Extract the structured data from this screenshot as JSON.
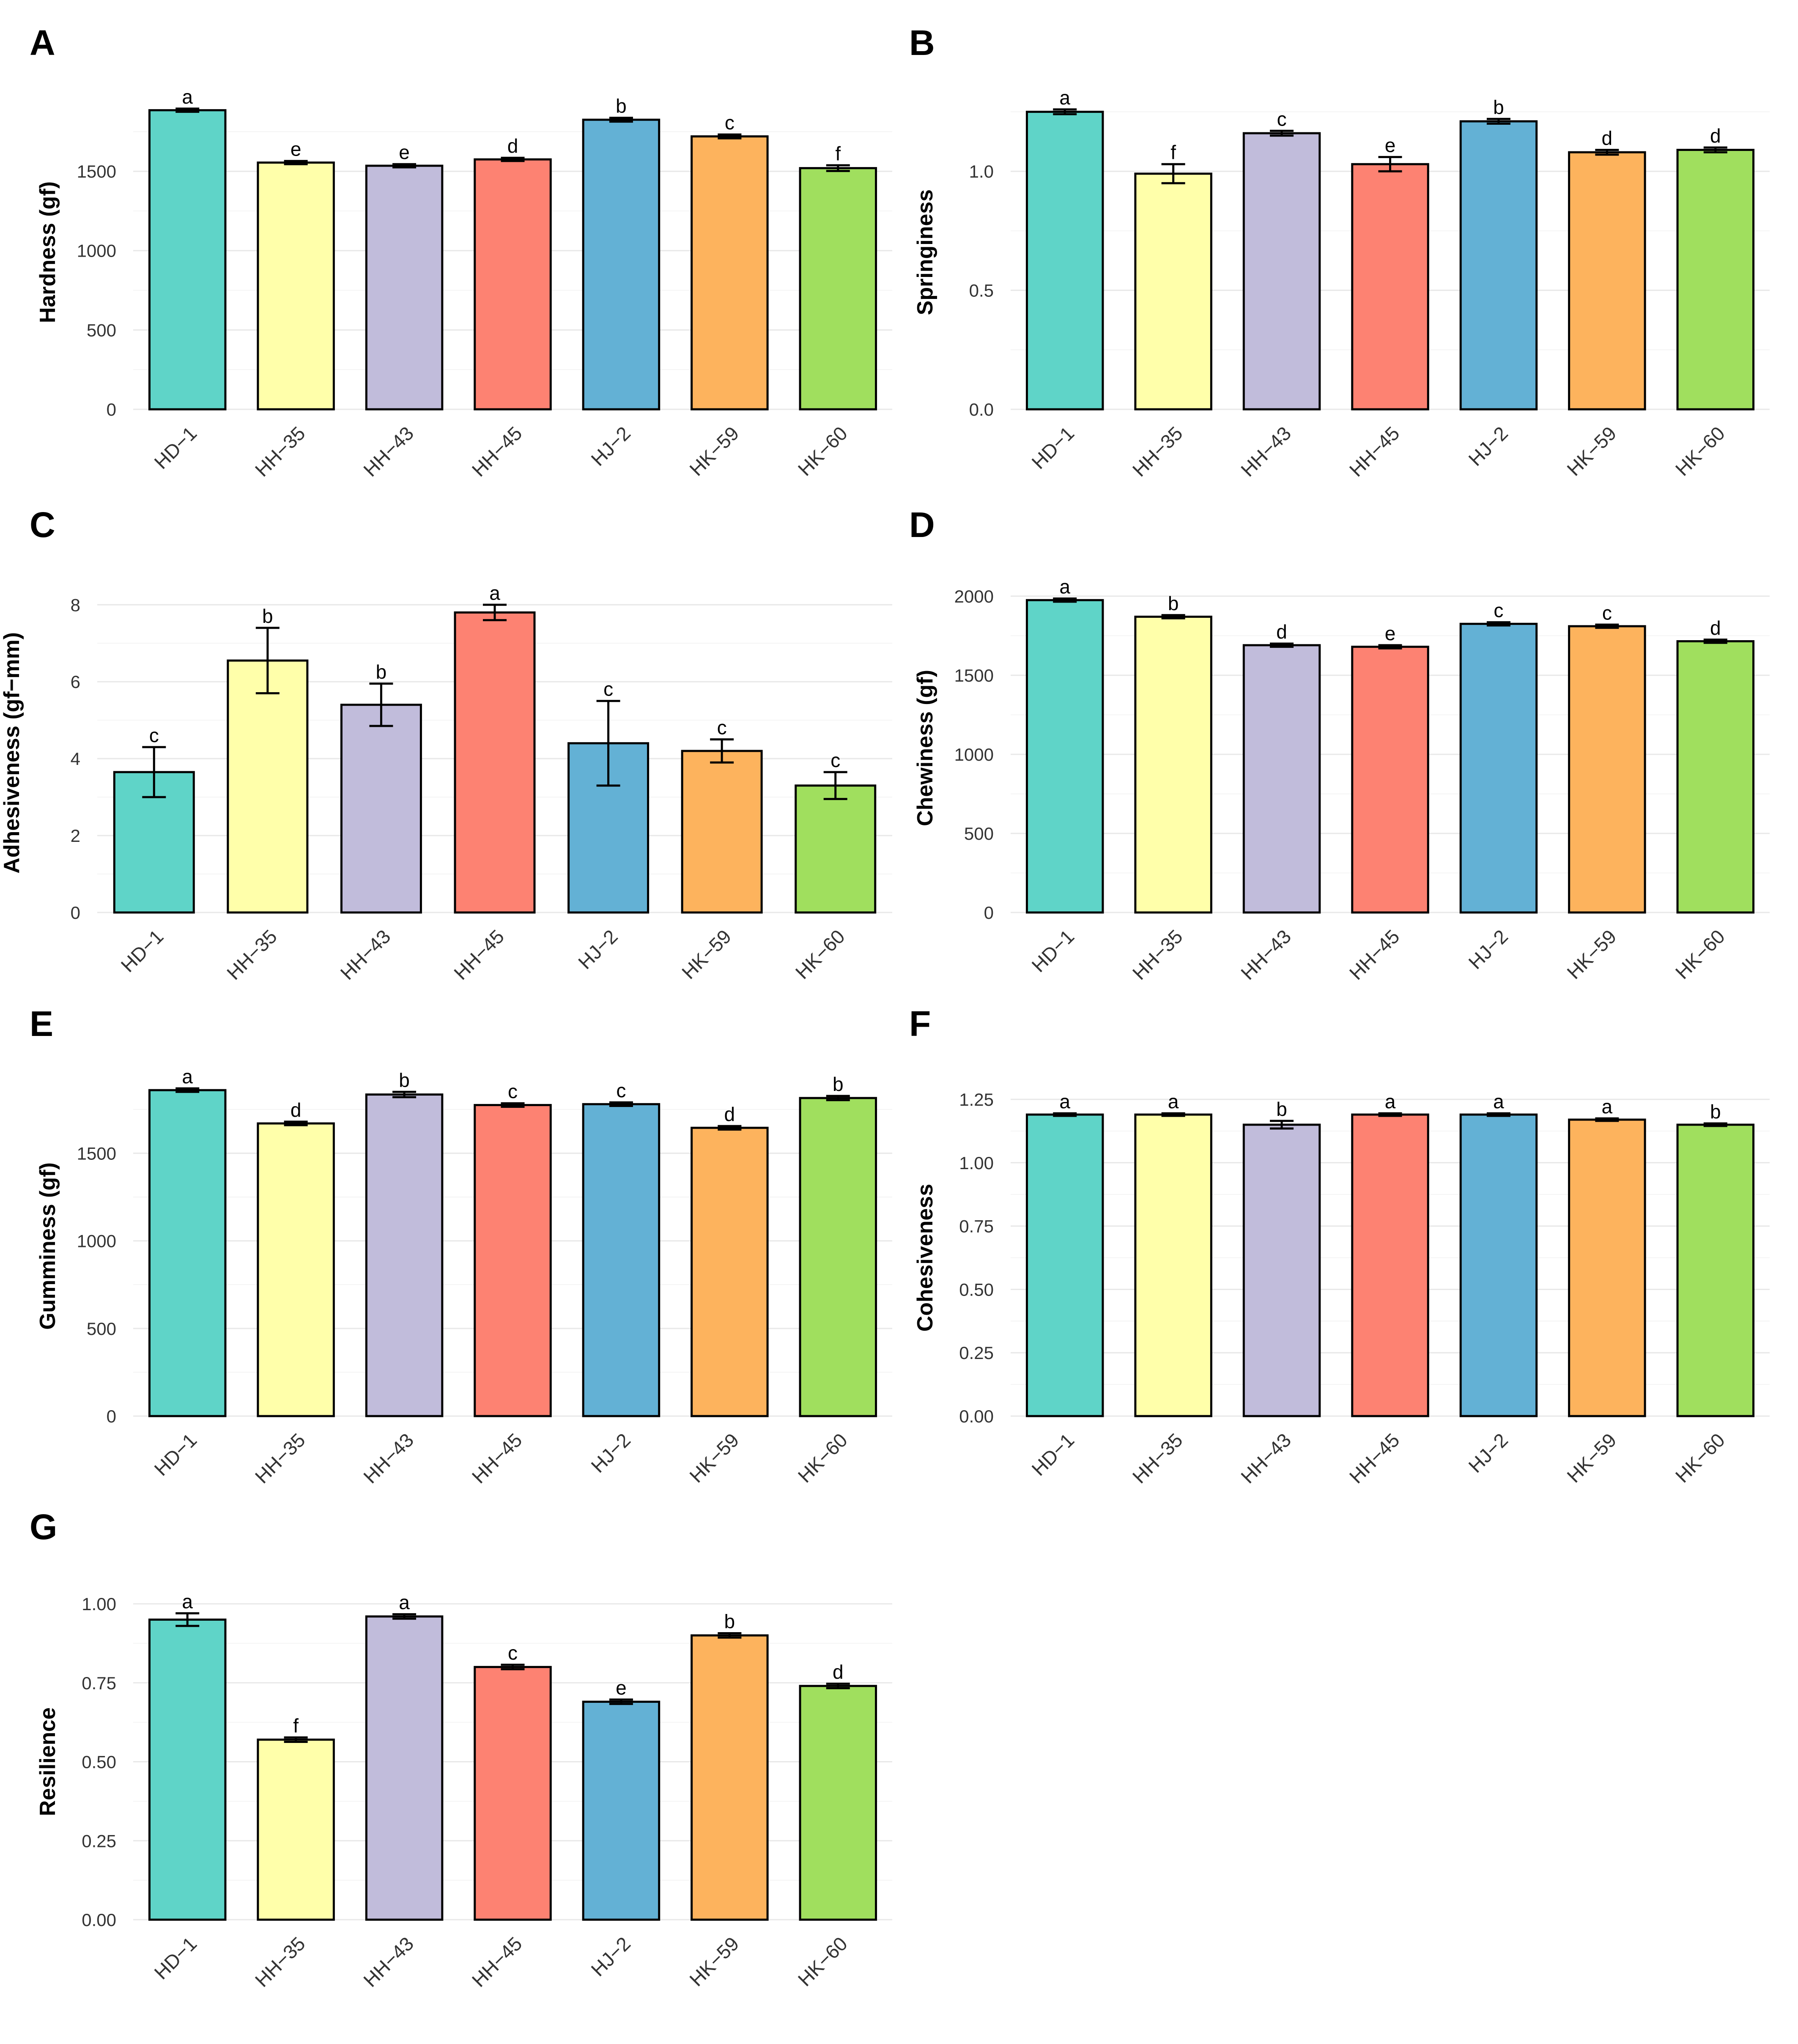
{
  "chart_data": [
    {
      "panel": "A",
      "type": "bar",
      "title": "",
      "xlabel": "",
      "ylabel": "Hardness (gf)",
      "categories": [
        "HD−1",
        "HH−35",
        "HH−43",
        "HH−45",
        "HJ−2",
        "HK−59",
        "HK−60"
      ],
      "values": [
        1885,
        1555,
        1535,
        1575,
        1825,
        1720,
        1520
      ],
      "errors": [
        10,
        10,
        10,
        10,
        12,
        12,
        18
      ],
      "letters": [
        "a",
        "e",
        "e",
        "d",
        "b",
        "c",
        "f"
      ],
      "ylim": [
        0,
        1980
      ],
      "yticks": [
        0,
        500,
        1000,
        1500
      ],
      "ytick_labels": [
        "0",
        "500",
        "1000",
        "1500"
      ]
    },
    {
      "panel": "B",
      "type": "bar",
      "title": "",
      "xlabel": "",
      "ylabel": "Springiness",
      "categories": [
        "HD−1",
        "HH−35",
        "HH−43",
        "HH−45",
        "HJ−2",
        "HK−59",
        "HK−60"
      ],
      "values": [
        1.25,
        0.99,
        1.16,
        1.03,
        1.21,
        1.08,
        1.09
      ],
      "errors": [
        0.01,
        0.04,
        0.01,
        0.03,
        0.01,
        0.01,
        0.01
      ],
      "letters": [
        "a",
        "f",
        "c",
        "e",
        "b",
        "d",
        "d"
      ],
      "ylim": [
        0,
        1.32
      ],
      "yticks": [
        0,
        0.5,
        1.0
      ],
      "ytick_labels": [
        "0.0",
        "0.5",
        "1.0"
      ]
    },
    {
      "panel": "C",
      "type": "bar",
      "title": "",
      "xlabel": "",
      "ylabel": "Adhesiveness (gf−mm)",
      "categories": [
        "HD−1",
        "HH−35",
        "HH−43",
        "HH−45",
        "HJ−2",
        "HK−59",
        "HK−60"
      ],
      "values": [
        3.65,
        6.55,
        5.4,
        7.8,
        4.4,
        4.2,
        3.3
      ],
      "errors": [
        0.65,
        0.85,
        0.55,
        0.2,
        1.1,
        0.3,
        0.35
      ],
      "letters": [
        "c",
        "b",
        "b",
        "a",
        "c",
        "c",
        "c"
      ],
      "ylim": [
        0,
        8.3
      ],
      "yticks": [
        0,
        2,
        4,
        6,
        8
      ],
      "ytick_labels": [
        "0",
        "2",
        "4",
        "6",
        "8"
      ]
    },
    {
      "panel": "D",
      "type": "bar",
      "title": "",
      "xlabel": "",
      "ylabel": "Chewiness (gf)",
      "categories": [
        "HD−1",
        "HH−35",
        "HH−43",
        "HH−45",
        "HJ−2",
        "HK−59",
        "HK−60"
      ],
      "values": [
        1975,
        1870,
        1690,
        1680,
        1825,
        1810,
        1715
      ],
      "errors": [
        10,
        10,
        10,
        10,
        10,
        10,
        10
      ],
      "letters": [
        "a",
        "b",
        "d",
        "e",
        "c",
        "c",
        "d"
      ],
      "ylim": [
        0,
        2080
      ],
      "yticks": [
        0,
        500,
        1000,
        1500,
        2000
      ],
      "ytick_labels": [
        "0",
        "500",
        "1000",
        "1500",
        "2000"
      ]
    },
    {
      "panel": "E",
      "type": "bar",
      "title": "",
      "xlabel": "",
      "ylabel": "Gumminess (gf)",
      "categories": [
        "HD−1",
        "HH−35",
        "HH−43",
        "HH−45",
        "HJ−2",
        "HK−59",
        "HK−60"
      ],
      "values": [
        1860,
        1670,
        1835,
        1775,
        1780,
        1645,
        1815
      ],
      "errors": [
        10,
        10,
        15,
        10,
        10,
        10,
        12
      ],
      "letters": [
        "a",
        "d",
        "b",
        "c",
        "c",
        "d",
        "b"
      ],
      "ylim": [
        0,
        1940
      ],
      "yticks": [
        0,
        500,
        1000,
        1500
      ],
      "ytick_labels": [
        "0",
        "500",
        "1000",
        "1500"
      ]
    },
    {
      "panel": "F",
      "type": "bar",
      "title": "",
      "xlabel": "",
      "ylabel": "Cohesiveness",
      "categories": [
        "HD−1",
        "HH−35",
        "HH−43",
        "HH−45",
        "HJ−2",
        "HK−59",
        "HK−60"
      ],
      "values": [
        1.19,
        1.19,
        1.15,
        1.19,
        1.19,
        1.17,
        1.15
      ],
      "errors": [
        0.005,
        0.005,
        0.015,
        0.005,
        0.005,
        0.005,
        0.005
      ],
      "letters": [
        "a",
        "a",
        "b",
        "a",
        "a",
        "a",
        "b"
      ],
      "ylim": [
        0,
        1.25
      ],
      "yticks": [
        0,
        0.25,
        0.5,
        0.75,
        1.0,
        1.25
      ],
      "ytick_labels": [
        "0.00",
        "0.25",
        "0.50",
        "0.75",
        "1.00",
        "1.25"
      ]
    },
    {
      "panel": "G",
      "type": "bar",
      "title": "",
      "xlabel": "",
      "ylabel": "Resilience",
      "categories": [
        "HD−1",
        "HH−35",
        "HH−43",
        "HH−45",
        "HJ−2",
        "HK−59",
        "HK−60"
      ],
      "values": [
        0.95,
        0.57,
        0.96,
        0.8,
        0.69,
        0.9,
        0.74
      ],
      "errors": [
        0.02,
        0.007,
        0.007,
        0.007,
        0.007,
        0.007,
        0.007
      ],
      "letters": [
        "a",
        "f",
        "a",
        "c",
        "e",
        "b",
        "d"
      ],
      "ylim": [
        0,
        1.0
      ],
      "yticks": [
        0,
        0.25,
        0.5,
        0.75,
        1.0
      ],
      "ytick_labels": [
        "0.00",
        "0.25",
        "0.50",
        "0.75",
        "1.00"
      ]
    }
  ],
  "colors": [
    "#5fd4c8",
    "#ffffaa",
    "#c1bcdb",
    "#fd8272",
    "#63b1d5",
    "#fdb35d",
    "#a0df5e"
  ]
}
